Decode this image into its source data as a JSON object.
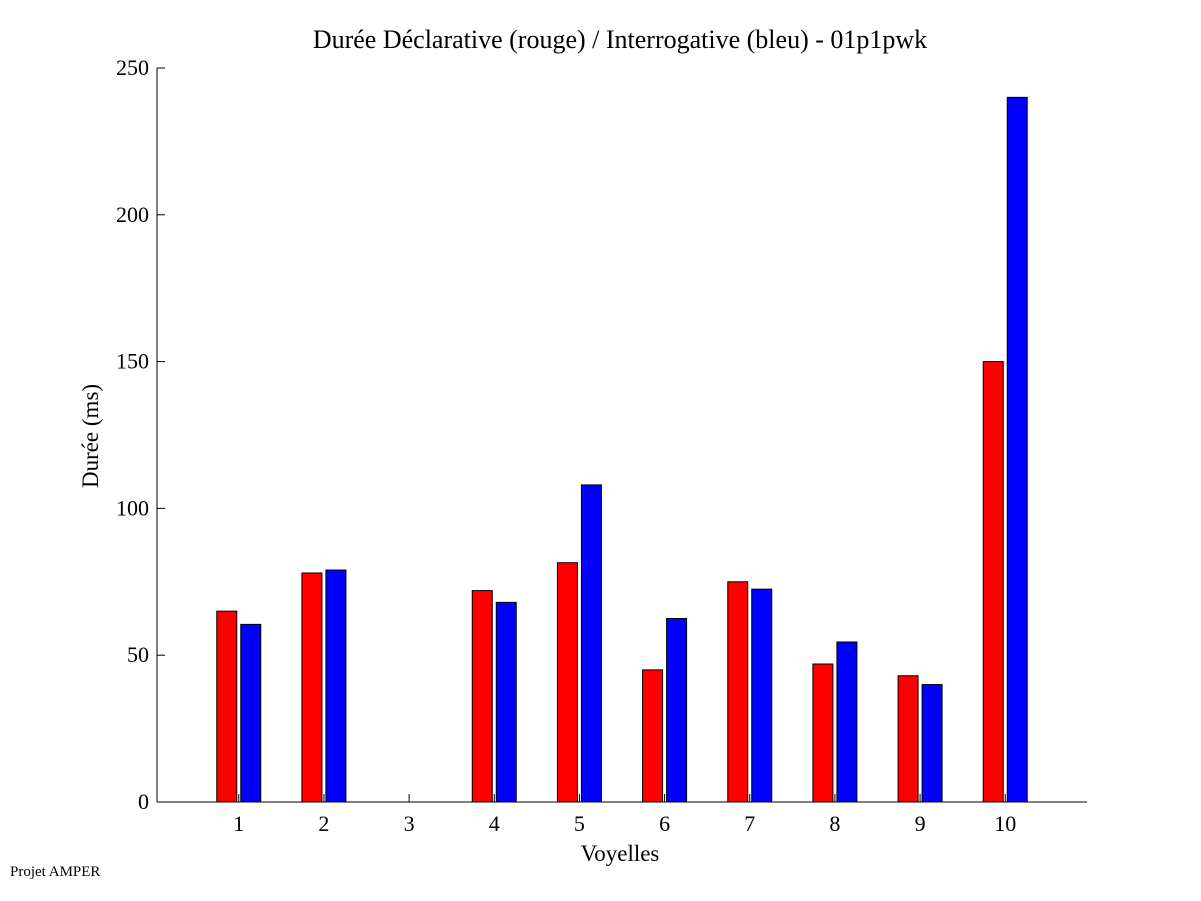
{
  "footer": {
    "note": "Projet AMPER"
  },
  "chart_data": {
    "type": "bar",
    "title": "Durée Déclarative (rouge) / Interrogative (bleu) - 01p1pwk",
    "xlabel": "Voyelles",
    "ylabel": "Durée (ms)",
    "categories": [
      "1",
      "2",
      "3",
      "4",
      "5",
      "6",
      "7",
      "8",
      "9",
      "10"
    ],
    "ylim": [
      0,
      250
    ],
    "yticks": [
      "0",
      "50",
      "100",
      "150",
      "200",
      "250"
    ],
    "grid": false,
    "legend": "none",
    "series": [
      {
        "color": "#ff0000",
        "values": [
          65,
          78,
          0,
          72,
          81.5,
          45,
          75,
          47,
          43,
          150
        ]
      },
      {
        "color": "#0000ff",
        "values": [
          60.5,
          79,
          0,
          68,
          108,
          62.5,
          72.5,
          54.5,
          40,
          240
        ]
      }
    ]
  }
}
